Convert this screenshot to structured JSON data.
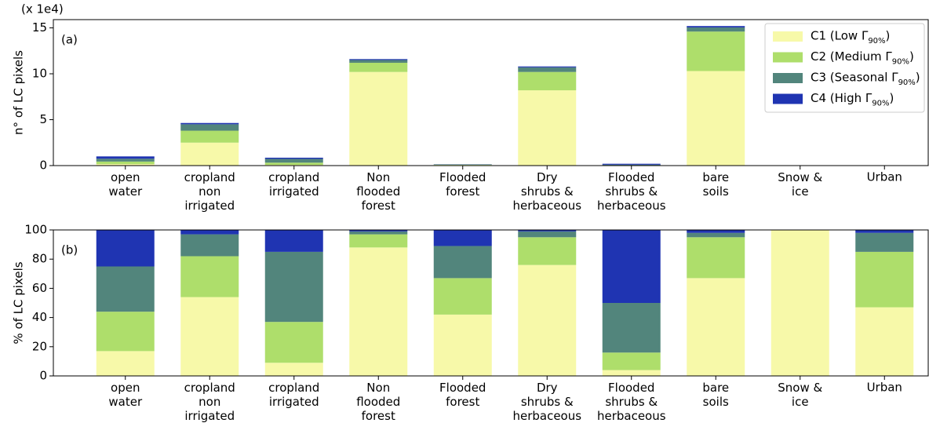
{
  "chart_data": [
    {
      "type": "bar",
      "stacked": true,
      "axis_note": "(x 1e4)",
      "ylabel": "n° of LC pixels",
      "annotation": "(a)",
      "categories": [
        "open\nwater",
        "cropland\nnon\nirrigated",
        "cropland\nirrigated",
        "Non\nflooded\nforest",
        "Flooded\nforest",
        "Dry\nshrubs &\nherbaceous",
        "Flooded\nshrubs &\nherbaceous",
        "bare\nsoils",
        "Snow &\nice",
        "Urban"
      ],
      "series": [
        {
          "name": "C1 (Low Γ90%)",
          "color": "#f7f9a9",
          "values": [
            0.17,
            2.5,
            0.08,
            10.2,
            0.06,
            8.2,
            0.01,
            10.3,
            0.01,
            0.01
          ]
        },
        {
          "name": "C2 (Medium Γ90%)",
          "color": "#aede6b",
          "values": [
            0.27,
            1.3,
            0.24,
            1.0,
            0.04,
            2.0,
            0.02,
            4.3,
            0,
            0.008
          ]
        },
        {
          "name": "C3 (Seasonal Γ90%)",
          "color": "#52857c",
          "values": [
            0.31,
            0.7,
            0.41,
            0.3,
            0.03,
            0.5,
            0.07,
            0.45,
            0,
            0.003
          ]
        },
        {
          "name": "C4 (High Γ90%)",
          "color": "#1f34b2",
          "values": [
            0.25,
            0.14,
            0.13,
            0.1,
            0.02,
            0.1,
            0.1,
            0.15,
            0,
            0.0005
          ]
        }
      ],
      "ylim": [
        0,
        15.9
      ],
      "yticks": [
        0,
        5,
        10,
        15
      ],
      "legend": "upper right"
    },
    {
      "type": "bar",
      "stacked": true,
      "ylabel": "% of LC pixels",
      "annotation": "(b)",
      "categories": [
        "open\nwater",
        "cropland\nnon\nirrigated",
        "cropland\nirrigated",
        "Non\nflooded\nforest",
        "Flooded\nforest",
        "Dry\nshrubs &\nherbaceous",
        "Flooded\nshrubs &\nherbaceous",
        "bare\nsoils",
        "Snow &\nice",
        "Urban"
      ],
      "series": [
        {
          "color": "#f7f9a9",
          "values": [
            17,
            54,
            9,
            88,
            42,
            76,
            4,
            67,
            100,
            47
          ]
        },
        {
          "color": "#aede6b",
          "values": [
            27,
            28,
            28,
            9,
            25,
            19,
            12,
            28,
            0,
            38
          ]
        },
        {
          "color": "#52857c",
          "values": [
            31,
            15,
            48,
            2,
            22,
            4,
            34,
            3,
            0,
            13
          ]
        },
        {
          "color": "#1f34b2",
          "values": [
            25,
            3,
            15,
            1,
            11,
            1,
            50,
            2,
            0,
            2
          ]
        }
      ],
      "ylim": [
        0,
        100
      ],
      "yticks": [
        0,
        20,
        40,
        60,
        80,
        100
      ]
    }
  ]
}
